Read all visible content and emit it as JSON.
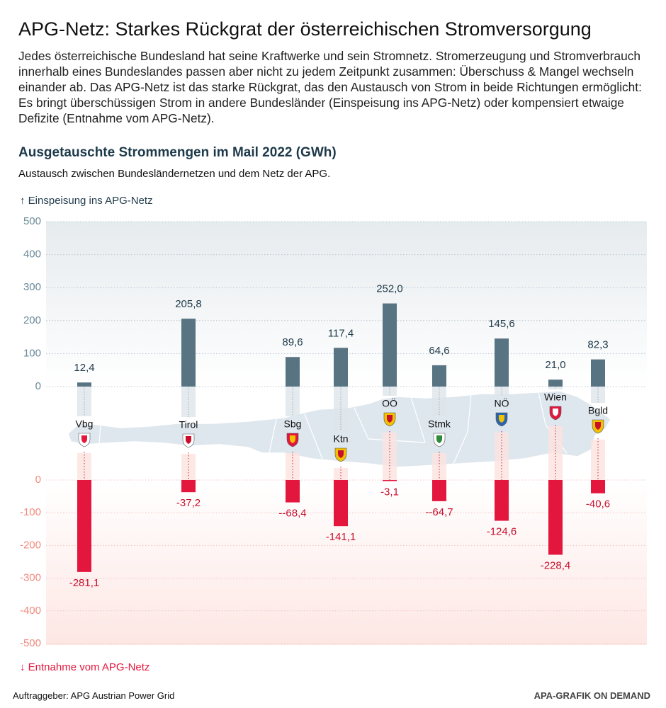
{
  "title": "APG-Netz: Starkes Rückgrat der österreichischen Stromversorgung",
  "description": "Jedes österreichische Bundesland hat seine Kraftwerke und sein Stromnetz. Stromerzeugung und Stromverbrauch innerhalb eines Bundeslandes passen aber nicht zu jedem Zeitpunkt zusammen: Überschuss & Mangel wechseln einander ab. Das APG-Netz ist das starke Rückgrat, das den Austausch von Strom in beide Richtungen ermöglicht: Es bringt überschüssigen Strom in andere Bundesländer (Einspeisung ins APG-Netz) oder kompensiert etwaige Defizite (Entnahme vom APG-Netz).",
  "chart_data": {
    "type": "bar",
    "title": "Ausgetauschte Strommengen im Mail 2022 (GWh)",
    "subtitle": "Austausch zwischen Bundesländernetzen und dem Netz der APG.",
    "categories": [
      "Vbg",
      "Tirol",
      "Sbg",
      "Ktn",
      "OÖ",
      "Stmk",
      "NÖ",
      "Wien",
      "Bgld"
    ],
    "series": [
      {
        "name": "↑ Einspeisung ins APG-Netz",
        "color": "#587482",
        "values": [
          12.4,
          205.8,
          89.6,
          117.4,
          252.0,
          64.6,
          145.6,
          21.0,
          82.3
        ],
        "value_labels": [
          "12,4",
          "205,8",
          "89,6",
          "117,4",
          "252,0",
          "64,6",
          "145,6",
          "21,0",
          "82,3"
        ]
      },
      {
        "name": "↓ Entnahme vom APG-Netz",
        "color": "#e3173e",
        "axis": "y2",
        "values": [
          -281.1,
          -37.2,
          -68.4,
          -141.1,
          -3.1,
          -64.7,
          -124.6,
          -228.4,
          -40.6
        ],
        "value_labels": [
          "-281,1",
          "-37,2",
          "--68,4",
          "-141,1",
          "-3,1",
          "--64,7",
          "-124,6",
          "-228,4",
          "-40,6"
        ]
      }
    ],
    "ylim": [
      0,
      500
    ],
    "yticks": [
      0,
      100,
      200,
      300,
      400,
      500
    ],
    "y2lim": [
      -500,
      0
    ],
    "y2ticks": [
      0,
      -100,
      -200,
      -300,
      -400,
      -500
    ],
    "grid": true
  },
  "footer": {
    "source": "Auftraggeber: APG Austrian Power Grid",
    "credit": "APA-GRAFIK ON DEMAND"
  }
}
